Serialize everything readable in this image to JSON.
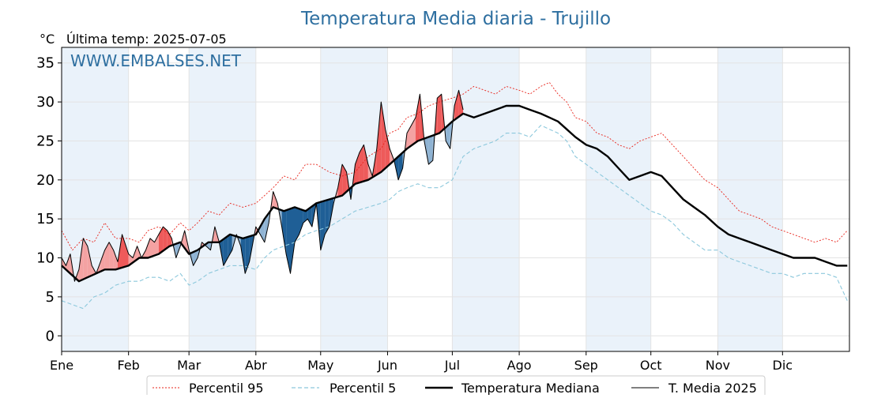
{
  "chart_data": {
    "type": "line",
    "title": "Temperatura Media diaria - Trujillo",
    "unit_label": "°C",
    "last_temp_label": "Última temp: 2025-07-05",
    "watermark": "WWW.EMBALSES.NET",
    "ylim": [
      -2,
      37
    ],
    "yticks": [
      0,
      5,
      10,
      15,
      20,
      25,
      30,
      35
    ],
    "x_domain_days": [
      0,
      365
    ],
    "months": [
      {
        "label": "Ene",
        "day": 0
      },
      {
        "label": "Feb",
        "day": 31
      },
      {
        "label": "Mar",
        "day": 59
      },
      {
        "label": "Abr",
        "day": 90
      },
      {
        "label": "May",
        "day": 120
      },
      {
        "label": "Jun",
        "day": 151
      },
      {
        "label": "Jul",
        "day": 181
      },
      {
        "label": "Ago",
        "day": 212
      },
      {
        "label": "Sep",
        "day": 243
      },
      {
        "label": "Oct",
        "day": 273
      },
      {
        "label": "Nov",
        "day": 304
      },
      {
        "label": "Dic",
        "day": 334
      }
    ],
    "shaded_months": [
      "Ene",
      "Mar",
      "May",
      "Jul",
      "Sep",
      "Nov"
    ],
    "grid": true,
    "legend_position": "bottom",
    "colors": {
      "p95": "#e8231a",
      "p5": "#8cc8dc",
      "median": "#000000",
      "actual": "#000000",
      "above_fill": "#f4a2a2",
      "above_fill_strong": "#ee5a5a",
      "below_fill": "#8fb3d3",
      "below_fill_strong": "#1f5f96",
      "band": "#eaf2fa",
      "title": "#2e6fa0"
    },
    "series": [
      {
        "name": "Percentil 95",
        "style": "dotted",
        "x": [
          0,
          5,
          10,
          15,
          20,
          25,
          31,
          36,
          40,
          45,
          50,
          55,
          59,
          63,
          68,
          73,
          78,
          84,
          90,
          94,
          98,
          103,
          108,
          113,
          118,
          124,
          130,
          136,
          142,
          148,
          152,
          156,
          160,
          165,
          170,
          175,
          181,
          186,
          191,
          196,
          201,
          206,
          212,
          217,
          222,
          226,
          230,
          234,
          238,
          243,
          248,
          253,
          258,
          263,
          268,
          273,
          278,
          283,
          288,
          293,
          298,
          304,
          309,
          314,
          319,
          324,
          329,
          334,
          339,
          344,
          349,
          354,
          359,
          364
        ],
        "values": [
          13.5,
          11.0,
          12.5,
          12.0,
          14.5,
          12.5,
          12.5,
          12.0,
          13.5,
          14.0,
          13.0,
          14.5,
          13.5,
          14.5,
          16.0,
          15.5,
          17.0,
          16.5,
          17.0,
          18.0,
          19.0,
          20.5,
          20.0,
          22.0,
          22.0,
          21.0,
          20.5,
          21.0,
          23.0,
          24.0,
          26.0,
          26.5,
          28.0,
          28.5,
          29.5,
          30.0,
          30.5,
          31.0,
          32.0,
          31.5,
          31.0,
          32.0,
          31.5,
          31.0,
          32.0,
          32.5,
          31.0,
          30.0,
          28.0,
          27.5,
          26.0,
          25.5,
          24.5,
          24.0,
          25.0,
          25.5,
          26.0,
          24.5,
          23.0,
          21.5,
          20.0,
          19.0,
          17.5,
          16.0,
          15.5,
          15.0,
          14.0,
          13.5,
          13.0,
          12.5,
          12.0,
          12.5,
          12.0,
          13.5
        ]
      },
      {
        "name": "Percentil 5",
        "style": "dashed",
        "x": [
          0,
          5,
          10,
          15,
          20,
          25,
          31,
          36,
          40,
          45,
          50,
          55,
          59,
          63,
          68,
          73,
          78,
          84,
          90,
          94,
          98,
          103,
          108,
          113,
          118,
          124,
          130,
          136,
          142,
          148,
          152,
          156,
          160,
          165,
          170,
          175,
          181,
          186,
          191,
          196,
          201,
          206,
          212,
          217,
          222,
          226,
          230,
          234,
          238,
          243,
          248,
          253,
          258,
          263,
          268,
          273,
          278,
          283,
          288,
          293,
          298,
          304,
          309,
          314,
          319,
          324,
          329,
          334,
          339,
          344,
          349,
          354,
          359,
          364
        ],
        "values": [
          4.5,
          4.0,
          3.5,
          5.0,
          5.5,
          6.5,
          7.0,
          7.0,
          7.5,
          7.5,
          7.0,
          8.0,
          6.5,
          7.0,
          8.0,
          8.5,
          9.0,
          9.0,
          8.5,
          10.0,
          11.0,
          11.5,
          12.0,
          13.0,
          13.5,
          14.0,
          15.0,
          16.0,
          16.5,
          17.0,
          17.5,
          18.5,
          19.0,
          19.5,
          19.0,
          19.0,
          20.0,
          23.0,
          24.0,
          24.5,
          25.0,
          26.0,
          26.0,
          25.5,
          27.0,
          26.5,
          26.0,
          25.0,
          23.0,
          22.0,
          21.0,
          20.0,
          19.0,
          18.0,
          17.0,
          16.0,
          15.5,
          14.5,
          13.0,
          12.0,
          11.0,
          11.0,
          10.0,
          9.5,
          9.0,
          8.5,
          8.0,
          8.0,
          7.5,
          8.0,
          8.0,
          8.0,
          7.5,
          4.5
        ]
      },
      {
        "name": "Temperatura Mediana",
        "style": "thick",
        "x": [
          0,
          4,
          8,
          12,
          16,
          20,
          25,
          31,
          36,
          40,
          45,
          50,
          55,
          59,
          63,
          68,
          73,
          78,
          84,
          90,
          94,
          98,
          103,
          108,
          113,
          118,
          124,
          130,
          136,
          142,
          148,
          152,
          156,
          160,
          165,
          170,
          175,
          181,
          186,
          191,
          196,
          201,
          206,
          212,
          217,
          222,
          226,
          230,
          234,
          238,
          243,
          248,
          253,
          258,
          263,
          268,
          273,
          278,
          283,
          288,
          293,
          298,
          304,
          309,
          314,
          319,
          324,
          329,
          334,
          339,
          344,
          349,
          354,
          359,
          364
        ],
        "values": [
          9.0,
          8.0,
          7.0,
          7.5,
          8.0,
          8.5,
          8.5,
          9.0,
          10.0,
          10.0,
          10.5,
          11.5,
          12.0,
          10.5,
          11.0,
          12.0,
          12.0,
          13.0,
          12.5,
          13.0,
          15.0,
          16.5,
          16.0,
          16.5,
          16.0,
          17.0,
          17.5,
          18.0,
          19.5,
          20.0,
          21.0,
          22.0,
          23.0,
          24.0,
          25.0,
          25.5,
          26.0,
          27.5,
          28.5,
          28.0,
          28.5,
          29.0,
          29.5,
          29.5,
          29.0,
          28.5,
          28.0,
          27.5,
          26.5,
          25.5,
          24.5,
          24.0,
          23.0,
          21.5,
          20.0,
          20.5,
          21.0,
          20.5,
          19.0,
          17.5,
          16.5,
          15.5,
          14.0,
          13.0,
          12.5,
          12.0,
          11.5,
          11.0,
          10.5,
          10.0,
          10.0,
          10.0,
          9.5,
          9.0,
          9.0
        ]
      },
      {
        "name": "T. Media 2025",
        "style": "thin",
        "x": [
          0,
          2,
          4,
          6,
          8,
          10,
          12,
          14,
          16,
          18,
          20,
          22,
          24,
          26,
          28,
          31,
          33,
          35,
          37,
          39,
          41,
          43,
          45,
          47,
          49,
          51,
          53,
          55,
          57,
          59,
          61,
          63,
          65,
          67,
          69,
          71,
          73,
          75,
          77,
          79,
          81,
          83,
          85,
          87,
          90,
          92,
          94,
          96,
          98,
          100,
          102,
          104,
          106,
          108,
          110,
          112,
          114,
          116,
          118,
          120,
          122,
          124,
          126,
          128,
          130,
          132,
          134,
          136,
          138,
          140,
          142,
          144,
          146,
          148,
          150,
          152,
          154,
          156,
          158,
          160,
          162,
          164,
          166,
          168,
          170,
          172,
          174,
          176,
          178,
          180,
          182,
          184,
          186
        ],
        "values": [
          10.0,
          9.0,
          10.5,
          7.0,
          8.5,
          12.5,
          11.5,
          9.0,
          8.0,
          9.5,
          11.0,
          12.0,
          11.0,
          9.5,
          13.0,
          10.5,
          10.0,
          11.5,
          10.0,
          11.0,
          12.5,
          12.0,
          13.0,
          14.0,
          13.5,
          12.5,
          10.0,
          11.5,
          13.5,
          11.0,
          9.0,
          10.0,
          12.0,
          11.5,
          11.0,
          14.0,
          12.0,
          9.0,
          10.0,
          11.0,
          13.0,
          11.5,
          8.0,
          9.5,
          14.0,
          13.0,
          12.0,
          14.5,
          18.5,
          17.0,
          14.0,
          10.5,
          8.0,
          12.0,
          13.0,
          14.5,
          15.0,
          14.0,
          17.0,
          11.0,
          13.0,
          14.0,
          17.0,
          19.0,
          22.0,
          21.0,
          17.5,
          22.0,
          23.5,
          24.5,
          22.0,
          20.5,
          24.0,
          30.0,
          26.5,
          24.0,
          22.5,
          20.0,
          21.5,
          26.0,
          27.0,
          28.0,
          31.0,
          25.0,
          22.0,
          22.5,
          30.5,
          31.0,
          25.0,
          24.0,
          29.5,
          31.5,
          29.0
        ]
      }
    ]
  }
}
